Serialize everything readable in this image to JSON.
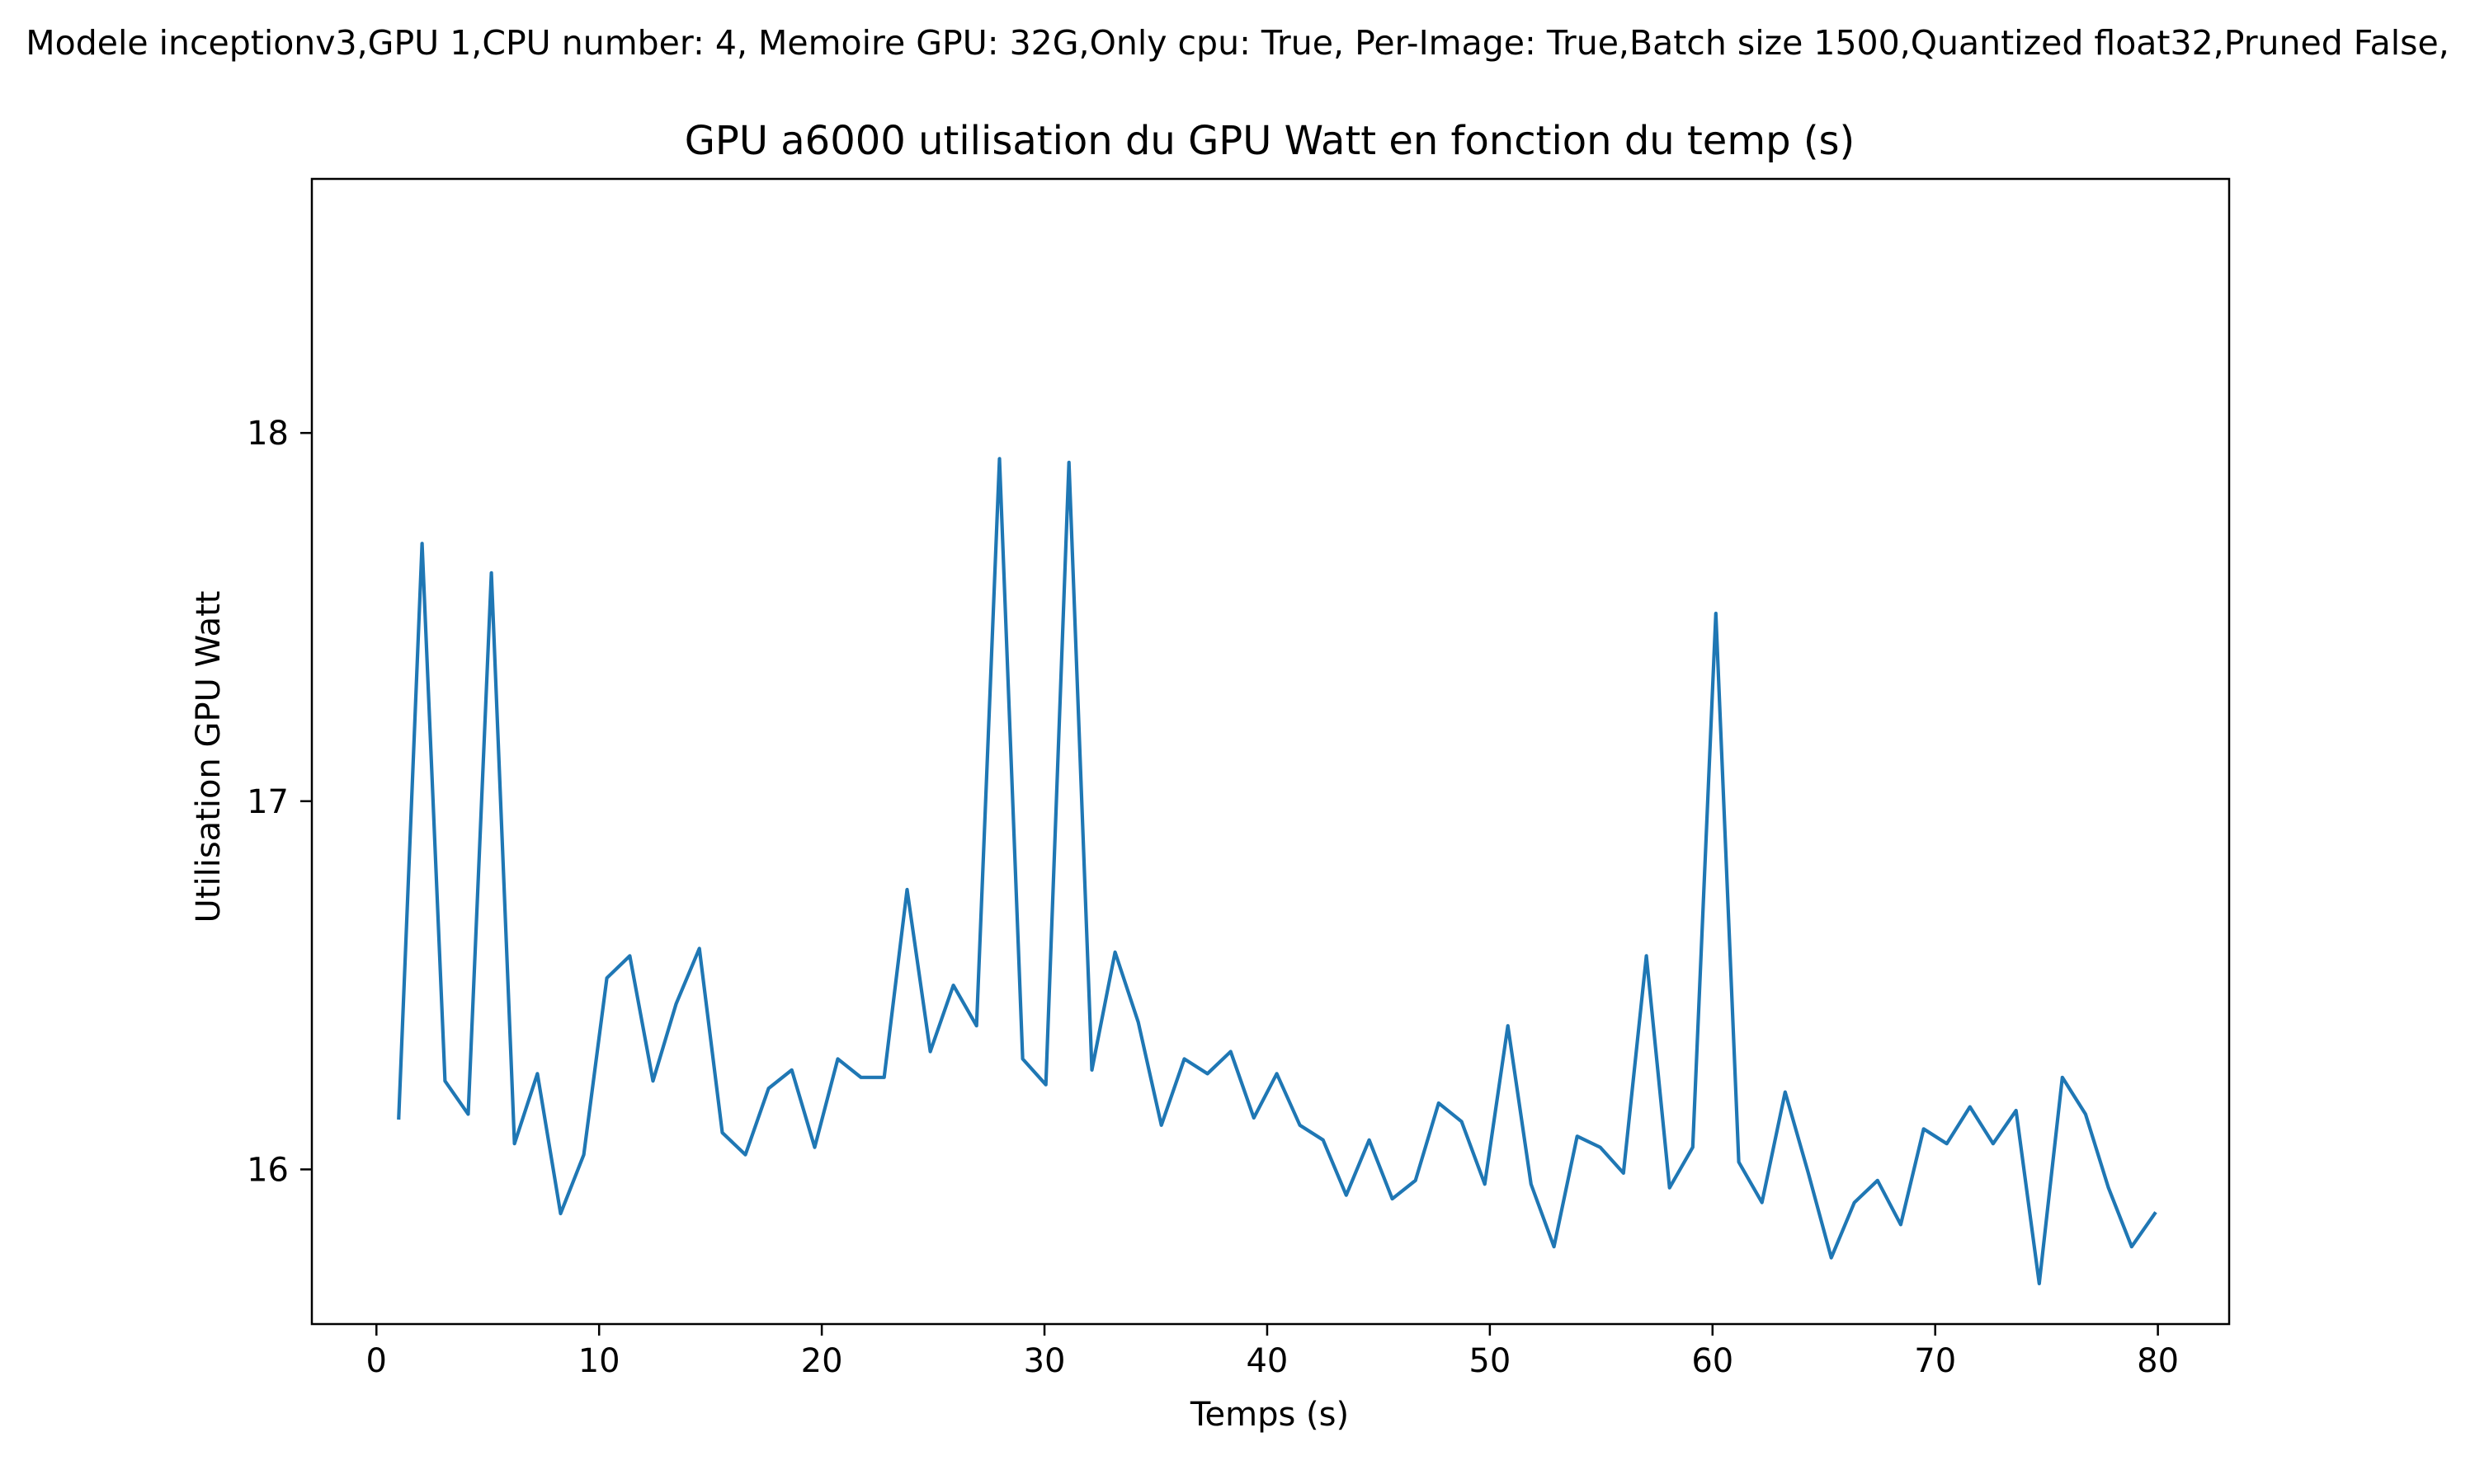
{
  "colors": {
    "line": "#1f77b4",
    "axes": "#000000",
    "background": "#ffffff"
  },
  "chart_data": {
    "type": "line",
    "suptitle": "Modele inceptionv3,GPU 1,CPU number: 4, Memoire GPU: 32G,Only cpu: True, Per-Image: True,Batch size 1500,Quantized float32,Pruned False,",
    "title": "GPU a6000 utilisation du GPU Watt en fonction du temp (s)",
    "xlabel": "Temps (s)",
    "ylabel": "Utilisation GPU Watt",
    "xlim": [
      -2.9,
      83.2
    ],
    "ylim": [
      15.58,
      18.69
    ],
    "xticks": [
      0,
      10,
      20,
      30,
      40,
      50,
      60,
      70,
      80
    ],
    "yticks": [
      16,
      17,
      18
    ],
    "grid": false,
    "legend": "none",
    "series": [
      {
        "x": [
          1.0,
          2.05,
          3.08,
          4.12,
          5.16,
          6.2,
          7.23,
          8.27,
          9.31,
          10.35,
          11.38,
          12.42,
          13.46,
          14.5,
          15.53,
          16.57,
          17.61,
          18.65,
          19.68,
          20.72,
          21.76,
          22.8,
          23.83,
          24.87,
          25.91,
          26.95,
          27.98,
          29.02,
          30.06,
          31.1,
          32.13,
          33.17,
          34.21,
          35.25,
          36.28,
          37.32,
          38.36,
          39.4,
          40.43,
          41.47,
          42.51,
          43.55,
          44.58,
          45.62,
          46.66,
          47.7,
          48.73,
          49.77,
          50.81,
          51.85,
          52.88,
          53.92,
          54.96,
          56.0,
          57.03,
          58.07,
          59.11,
          60.15,
          61.18,
          62.22,
          63.26,
          64.3,
          65.33,
          66.37,
          67.41,
          68.45,
          69.48,
          70.52,
          71.56,
          72.6,
          73.63,
          74.67,
          75.71,
          76.75,
          77.78,
          78.82,
          79.86
        ],
        "values": [
          16.14,
          17.7,
          16.24,
          16.15,
          17.62,
          16.07,
          16.26,
          15.88,
          16.04,
          16.52,
          16.58,
          16.24,
          16.45,
          16.6,
          16.1,
          16.04,
          16.22,
          16.27,
          16.06,
          16.3,
          16.25,
          16.25,
          16.76,
          16.32,
          16.5,
          16.39,
          17.93,
          16.3,
          16.23,
          17.92,
          16.27,
          16.59,
          16.4,
          16.12,
          16.3,
          16.26,
          16.32,
          16.14,
          16.26,
          16.12,
          16.08,
          15.93,
          16.08,
          15.92,
          15.97,
          16.18,
          16.13,
          15.96,
          16.39,
          15.96,
          15.79,
          16.09,
          16.06,
          15.99,
          16.58,
          15.95,
          16.06,
          17.51,
          16.02,
          15.91,
          16.21,
          15.99,
          15.76,
          15.91,
          15.97,
          15.85,
          16.11,
          16.07,
          16.17,
          16.07,
          16.16,
          15.69,
          16.25,
          16.15,
          15.95,
          15.79,
          15.88
        ]
      }
    ]
  }
}
